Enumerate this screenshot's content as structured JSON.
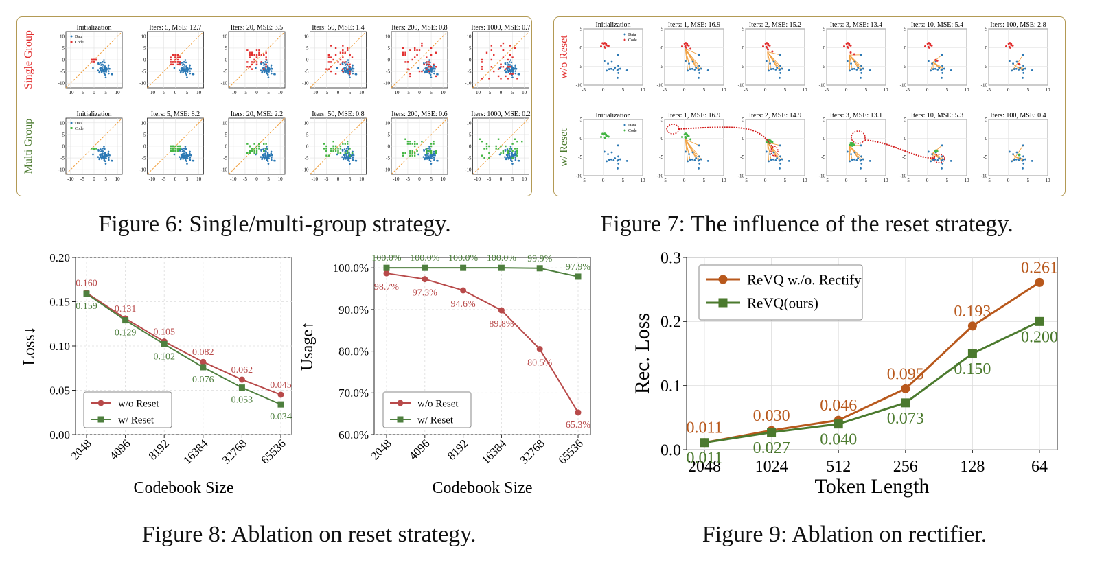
{
  "figures": {
    "fig6_caption": "Figure 6: Single/multi-group strategy.",
    "fig7_caption": "Figure 7: The influence of the reset strategy.",
    "fig8_caption": "Figure 8: Ablation on reset strategy.",
    "fig9_caption": "Figure 9: Ablation on rectifier."
  },
  "colors": {
    "red": "#b84a4a",
    "green": "#4e7f3e",
    "orange": "#b8581c",
    "olive": "#4b7a2e",
    "data_blue": "#2b78b4",
    "code_red": "#e23030",
    "code_green": "#44b544",
    "diag": "#f0a040",
    "panel_border": "#b39a55"
  },
  "chart_data": [
    {
      "id": "fig6",
      "type": "scatter",
      "row_labels": [
        "Single Group",
        "Multi Group"
      ],
      "legend": [
        "Data",
        "Code"
      ],
      "xlim": [
        -12,
        12
      ],
      "ylim": [
        -12,
        12
      ],
      "ticks": [
        -10,
        -5,
        0,
        5,
        10
      ],
      "titles_row1": [
        "Initialization",
        "Iters: 5, MSE: 12.7",
        "Iters: 20, MSE: 3.5",
        "Iters: 50, MSE: 1.4",
        "Iters: 200, MSE: 0.8",
        "Iters: 1000, MSE: 0.7"
      ],
      "titles_row2": [
        "Initialization",
        "Iters: 5, MSE: 8.2",
        "Iters: 20, MSE: 2.2",
        "Iters: 50, MSE: 0.8",
        "Iters: 200, MSE: 0.6",
        "Iters: 1000, MSE: 0.2"
      ]
    },
    {
      "id": "fig7",
      "type": "scatter",
      "row_labels": [
        "w/o Reset",
        "w/ Reset"
      ],
      "legend": [
        "Data",
        "Code"
      ],
      "xlim": [
        -5,
        10
      ],
      "ylim": [
        -10,
        5
      ],
      "xticks": [
        -5,
        0,
        5,
        10
      ],
      "yticks": [
        -10,
        -5,
        0,
        5
      ],
      "titles_row1": [
        "Initialization",
        "Iters: 1, MSE: 16.9",
        "Iters: 2, MSE: 15.2",
        "Iters: 3, MSE: 13.4",
        "Iters: 10, MSE: 5.4",
        "Iters: 100, MSE: 2.8"
      ],
      "titles_row2": [
        "Initialization",
        "Iters: 1, MSE: 16.9",
        "Iters: 2, MSE: 14.9",
        "Iters: 3, MSE: 13.1",
        "Iters: 10, MSE: 5.3",
        "Iters: 100, MSE: 0.4"
      ]
    },
    {
      "id": "fig8a",
      "type": "line",
      "categories": [
        "2048",
        "4096",
        "8192",
        "16384",
        "32768",
        "65536"
      ],
      "xlabel": "Codebook Size",
      "ylabel": "Loss↓",
      "ylim": [
        0.0,
        0.2
      ],
      "yticks": [
        "0.00",
        "0.05",
        "0.10",
        "0.15",
        "0.20"
      ],
      "series": [
        {
          "name": "w/o Reset",
          "values": [
            0.16,
            0.131,
            0.105,
            0.082,
            0.062,
            0.045
          ],
          "labels": [
            "0.160",
            "0.131",
            "0.105",
            "0.082",
            "0.062",
            "0.045"
          ]
        },
        {
          "name": "w/ Reset",
          "values": [
            0.159,
            0.129,
            0.102,
            0.076,
            0.053,
            0.034
          ],
          "labels": [
            "0.159",
            "0.129",
            "0.102",
            "0.076",
            "0.053",
            "0.034"
          ]
        }
      ],
      "legend_position": "lower-left"
    },
    {
      "id": "fig8b",
      "type": "line",
      "categories": [
        "2048",
        "4096",
        "8192",
        "16384",
        "32768",
        "65536"
      ],
      "xlabel": "Codebook Size",
      "ylabel": "Usage↑",
      "ylim": [
        60.0,
        102.5
      ],
      "yticks": [
        "60.0%",
        "70.0%",
        "80.0%",
        "90.0%",
        "100.0%"
      ],
      "series": [
        {
          "name": "w/o Reset",
          "values": [
            98.7,
            97.3,
            94.6,
            89.8,
            80.5,
            65.3
          ],
          "labels": [
            "98.7%",
            "97.3%",
            "94.6%",
            "89.8%",
            "80.5%",
            "65.3%"
          ]
        },
        {
          "name": "w/ Reset",
          "values": [
            100.0,
            100.0,
            100.0,
            100.0,
            99.9,
            97.9
          ],
          "labels": [
            "100.0%",
            "100.0%",
            "100.0%",
            "100.0%",
            "99.9%",
            "97.9%"
          ]
        }
      ],
      "legend_position": "lower-left"
    },
    {
      "id": "fig9",
      "type": "line",
      "categories": [
        "2048",
        "1024",
        "512",
        "256",
        "128",
        "64"
      ],
      "xlabel": "Token Length",
      "ylabel": "Rec. Loss",
      "ylim": [
        0.0,
        0.3
      ],
      "yticks": [
        "0.0",
        "0.1",
        "0.2",
        "0.3"
      ],
      "series": [
        {
          "name": "ReVQ w./o. Rectify",
          "values": [
            0.011,
            0.03,
            0.046,
            0.095,
            0.193,
            0.261
          ],
          "labels": [
            "0.011",
            "0.030",
            "0.046",
            "0.095",
            "0.193",
            "0.261"
          ]
        },
        {
          "name": "ReVQ(ours)",
          "values": [
            0.011,
            0.027,
            0.04,
            0.073,
            0.15,
            0.2
          ],
          "labels": [
            "0.011",
            "0.027",
            "0.040",
            "0.073",
            "0.150",
            "0.200"
          ]
        }
      ],
      "legend_position": "top-left"
    }
  ]
}
